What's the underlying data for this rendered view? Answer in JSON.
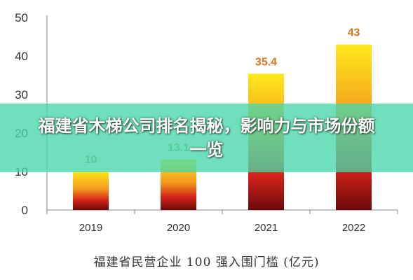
{
  "banner": {
    "title": "福建省木梯公司排名揭秘，影响力与市场份额一览"
  },
  "caption": "福建省民营企业 100 强入围门槛 (亿元)",
  "chart_data": {
    "type": "bar",
    "categories": [
      "2019",
      "2020",
      "2021",
      "2022"
    ],
    "values": [
      10,
      13.1,
      35.4,
      43
    ],
    "value_labels": [
      "10",
      "13.1",
      "35.4",
      "43"
    ],
    "ylim": [
      0,
      50
    ],
    "yticks": [
      "0",
      "10",
      "20",
      "30",
      "40",
      "50"
    ],
    "grid": false,
    "colors": {
      "bar_top": "#FFE81A",
      "bar_mid": "#F39A1E",
      "bar_low": "#D2231A",
      "bar_bottom": "#6B0A0A",
      "label_small": "#7FA35A",
      "label_large": "#D9781E"
    }
  }
}
